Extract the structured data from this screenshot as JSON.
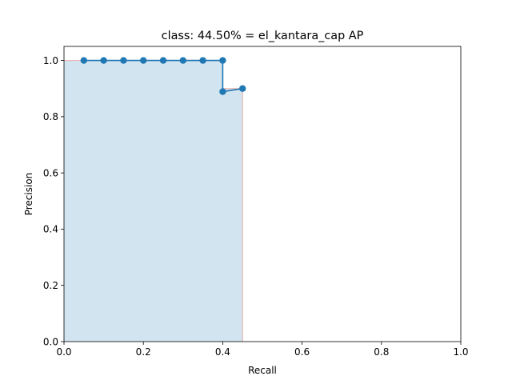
{
  "chart_data": {
    "type": "line",
    "title": "class: 44.50% = el_kantara_cap AP",
    "xlabel": "Recall",
    "ylabel": "Precision",
    "xlim": [
      0.0,
      1.0
    ],
    "ylim": [
      0.0,
      1.05
    ],
    "xticks": [
      "0.0",
      "0.2",
      "0.4",
      "0.6",
      "0.8",
      "1.0"
    ],
    "xtick_values": [
      0.0,
      0.2,
      0.4,
      0.6,
      0.8,
      1.0
    ],
    "yticks": [
      "0.0",
      "0.2",
      "0.4",
      "0.6",
      "0.8",
      "1.0"
    ],
    "ytick_values": [
      0.0,
      0.2,
      0.4,
      0.6,
      0.8,
      1.0
    ],
    "grid": false,
    "series": [
      {
        "values_x": [
          0.05,
          0.1,
          0.15,
          0.2,
          0.25,
          0.3,
          0.35,
          0.4,
          0.4,
          0.45
        ],
        "values_y": [
          1.0,
          1.0,
          1.0,
          1.0,
          1.0,
          1.0,
          1.0,
          1.0,
          0.889,
          0.9
        ],
        "color": "#1f77b4",
        "marker": "circle"
      }
    ],
    "area": {
      "x": [
        0.0,
        0.4,
        0.4,
        0.45
      ],
      "y": [
        1.0,
        1.0,
        0.9,
        0.9
      ],
      "fill_color": "#1f77b4",
      "fill_opacity": 0.2,
      "edge_color": "#e8a8a8"
    }
  }
}
